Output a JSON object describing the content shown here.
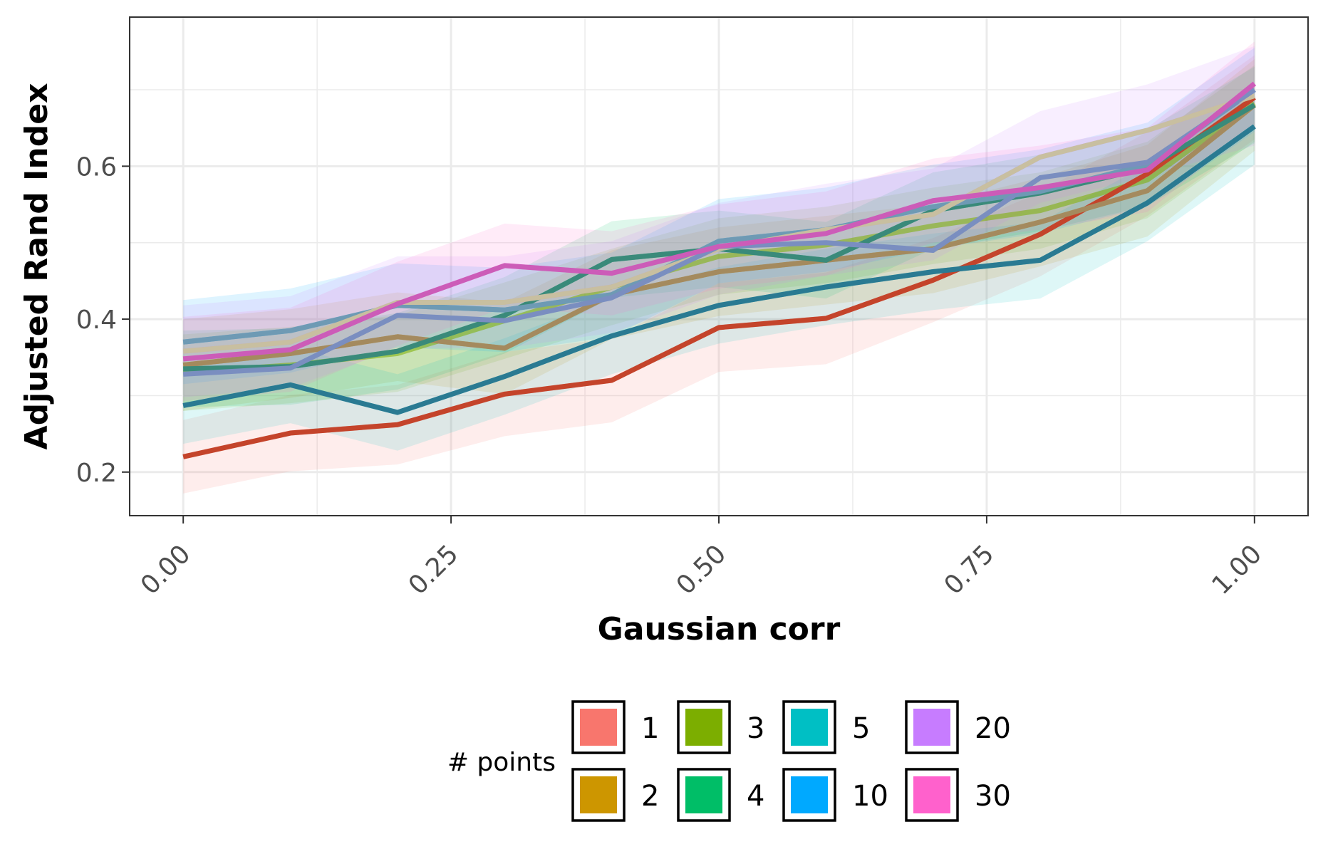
{
  "chart_data": {
    "type": "line",
    "xlabel": "Gaussian corr",
    "ylabel": "Adjusted Rand Index",
    "x": [
      0.0,
      0.1,
      0.2,
      0.3,
      0.4,
      0.5,
      0.6,
      0.7,
      0.8,
      0.9,
      1.0
    ],
    "xlim": [
      -0.05,
      1.05
    ],
    "ylim": [
      0.143,
      0.795
    ],
    "x_ticks": [
      0.0,
      0.25,
      0.5,
      0.75,
      1.0
    ],
    "x_tick_labels": [
      "0.00",
      "0.25",
      "0.50",
      "0.75",
      "1.00"
    ],
    "y_ticks": [
      0.2,
      0.4,
      0.6
    ],
    "y_tick_labels": [
      "0.2",
      "0.4",
      "0.6"
    ],
    "grid": true,
    "legend_title": "# points",
    "legend_position": "bottom",
    "series": [
      {
        "name": "1",
        "color": "#F8766D",
        "values": [
          0.22,
          0.251,
          0.262,
          0.302,
          0.32,
          0.389,
          0.401,
          0.451,
          0.511,
          0.59,
          0.69
        ],
        "band": [
          0.048,
          0.05,
          0.052,
          0.055,
          0.055,
          0.058,
          0.06,
          0.055,
          0.055,
          0.055,
          0.055
        ]
      },
      {
        "name": "2",
        "color": "#CD9600",
        "values": [
          0.34,
          0.355,
          0.377,
          0.362,
          0.432,
          0.462,
          0.477,
          0.492,
          0.527,
          0.568,
          0.68
        ],
        "band": [
          0.06,
          0.058,
          0.058,
          0.06,
          0.058,
          0.058,
          0.058,
          0.058,
          0.058,
          0.06,
          0.06
        ]
      },
      {
        "name": "3",
        "color": "#7CAE00",
        "values": [
          0.33,
          0.34,
          0.355,
          0.398,
          0.442,
          0.482,
          0.497,
          0.522,
          0.542,
          0.582,
          0.682
        ],
        "band": [
          0.05,
          0.05,
          0.05,
          0.05,
          0.05,
          0.05,
          0.05,
          0.05,
          0.05,
          0.05,
          0.05
        ]
      },
      {
        "name": "4",
        "color": "#00BE67",
        "values": [
          0.335,
          0.338,
          0.358,
          0.405,
          0.478,
          0.492,
          0.477,
          0.542,
          0.565,
          0.598,
          0.68
        ],
        "band": [
          0.05,
          0.05,
          0.05,
          0.05,
          0.05,
          0.05,
          0.05,
          0.05,
          0.05,
          0.05,
          0.05
        ]
      },
      {
        "name": "5",
        "color": "#00BFC4",
        "values": [
          0.287,
          0.314,
          0.278,
          0.325,
          0.378,
          0.418,
          0.442,
          0.462,
          0.477,
          0.552,
          0.652
        ],
        "band": [
          0.05,
          0.05,
          0.05,
          0.05,
          0.05,
          0.05,
          0.05,
          0.05,
          0.05,
          0.05,
          0.05
        ]
      },
      {
        "name": "10",
        "color": "#00A9FF",
        "values": [
          0.37,
          0.385,
          0.418,
          0.412,
          0.432,
          0.502,
          0.517,
          0.547,
          0.567,
          0.602,
          0.7
        ],
        "band": [
          0.055,
          0.055,
          0.055,
          0.055,
          0.055,
          0.055,
          0.055,
          0.055,
          0.055,
          0.055,
          0.055
        ]
      },
      {
        "name": "20",
        "color": "#C77CFF",
        "values": [
          0.358,
          0.37,
          0.422,
          0.422,
          0.442,
          0.492,
          0.517,
          0.537,
          0.612,
          0.647,
          0.692
        ],
        "band": [
          0.06,
          0.06,
          0.06,
          0.06,
          0.06,
          0.06,
          0.06,
          0.06,
          0.06,
          0.06,
          0.065
        ]
      },
      {
        "name": "30",
        "color": "#FF61CC",
        "values": [
          0.348,
          0.36,
          0.42,
          0.47,
          0.46,
          0.495,
          0.512,
          0.555,
          0.572,
          0.595,
          0.708
        ],
        "band": [
          0.055,
          0.055,
          0.055,
          0.055,
          0.055,
          0.055,
          0.055,
          0.055,
          0.055,
          0.055,
          0.055
        ]
      }
    ],
    "overlay_lines": [
      {
        "color": "#C4442B",
        "values": [
          0.22,
          0.251,
          0.262,
          0.302,
          0.32,
          0.389,
          0.401,
          0.451,
          0.511,
          0.59,
          0.69
        ]
      },
      {
        "color": "#A48A5E",
        "values": [
          0.34,
          0.355,
          0.377,
          0.362,
          0.432,
          0.462,
          0.477,
          0.492,
          0.527,
          0.568,
          0.68
        ]
      },
      {
        "color": "#3A8A7A",
        "values": [
          0.335,
          0.338,
          0.358,
          0.405,
          0.478,
          0.492,
          0.477,
          0.542,
          0.565,
          0.598,
          0.68
        ]
      },
      {
        "color": "#2A7A92",
        "values": [
          0.287,
          0.314,
          0.278,
          0.325,
          0.378,
          0.418,
          0.442,
          0.462,
          0.477,
          0.552,
          0.652
        ]
      },
      {
        "color": "#6E9AB4",
        "values": [
          0.37,
          0.385,
          0.418,
          0.412,
          0.432,
          0.502,
          0.517,
          0.547,
          0.567,
          0.602,
          0.7
        ]
      },
      {
        "color": "#C8BFA0",
        "values": [
          0.358,
          0.37,
          0.422,
          0.422,
          0.442,
          0.492,
          0.517,
          0.537,
          0.612,
          0.647,
          0.692
        ]
      },
      {
        "color": "#7A8EC0",
        "values": [
          0.328,
          0.336,
          0.405,
          0.398,
          0.428,
          0.495,
          0.5,
          0.49,
          0.585,
          0.605,
          0.7
        ]
      },
      {
        "color": "#CC5CB8",
        "values": [
          0.348,
          0.36,
          0.42,
          0.47,
          0.46,
          0.495,
          0.512,
          0.555,
          0.572,
          0.595,
          0.708
        ]
      }
    ]
  }
}
